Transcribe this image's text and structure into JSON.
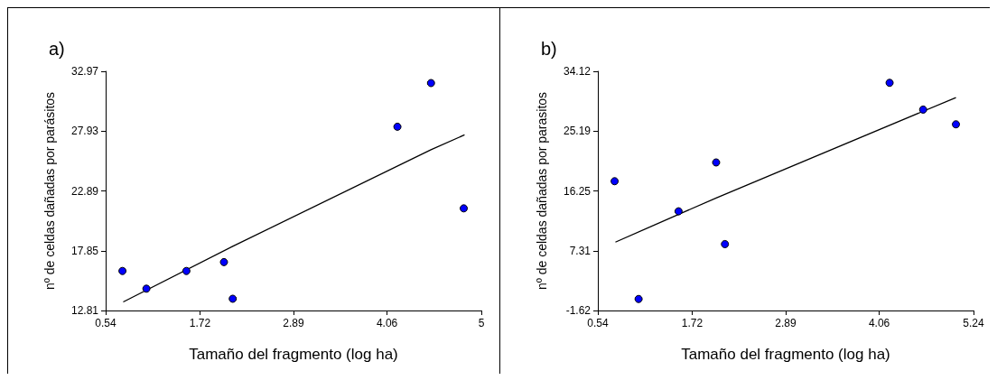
{
  "chart_data": [
    {
      "type": "scatter",
      "title": "a)",
      "xlabel": "Tamaño del fragmento (log ha)",
      "ylabel": "nº de celdas dañadas por parásitos",
      "xlim": [
        0.54,
        5.24
      ],
      "xticks": [
        0.54,
        1.72,
        2.89,
        4.06,
        {
          "value": 5.24,
          "label": "5"
        }
      ],
      "ylim": [
        12.81,
        32.97
      ],
      "yticks": [
        12.81,
        17.85,
        22.89,
        27.93,
        32.97
      ],
      "grid": false,
      "marker": "circle",
      "series": [
        {
          "color": "#0000ff",
          "x": [
            0.75,
            1.05,
            1.55,
            2.02,
            2.13,
            4.19,
            4.61,
            5.02
          ],
          "values": [
            16.14,
            14.65,
            16.14,
            16.89,
            13.8,
            28.3,
            31.98,
            21.42
          ]
        },
        {
          "type": "line",
          "color": "#000000",
          "marker": "none",
          "x": [
            0.76,
            2.13,
            4.61,
            5.03
          ],
          "values": [
            13.53,
            18.22,
            26.36,
            27.61
          ]
        }
      ]
    },
    {
      "type": "scatter",
      "title": "b)",
      "xlabel": "Tamaño del fragmento (log ha)",
      "ylabel": "nº de celdas dañadas por parasitos",
      "xlim": [
        0.54,
        5.24
      ],
      "xticks": [
        0.54,
        1.72,
        2.89,
        4.06,
        5.24
      ],
      "ylim": [
        -1.62,
        34.12
      ],
      "yticks": [
        -1.62,
        7.31,
        16.25,
        25.19,
        34.12
      ],
      "grid": false,
      "marker": "circle",
      "series": [
        {
          "color": "#0000ff",
          "x": [
            0.75,
            1.05,
            1.55,
            2.02,
            2.13,
            4.19,
            4.61,
            5.02
          ],
          "values": [
            17.7,
            0.1,
            13.2,
            20.5,
            8.3,
            32.4,
            28.4,
            26.2
          ]
        },
        {
          "type": "line",
          "color": "#000000",
          "marker": "none",
          "x": [
            0.76,
            2.02,
            5.02
          ],
          "values": [
            8.6,
            15.2,
            30.2
          ]
        }
      ]
    }
  ]
}
